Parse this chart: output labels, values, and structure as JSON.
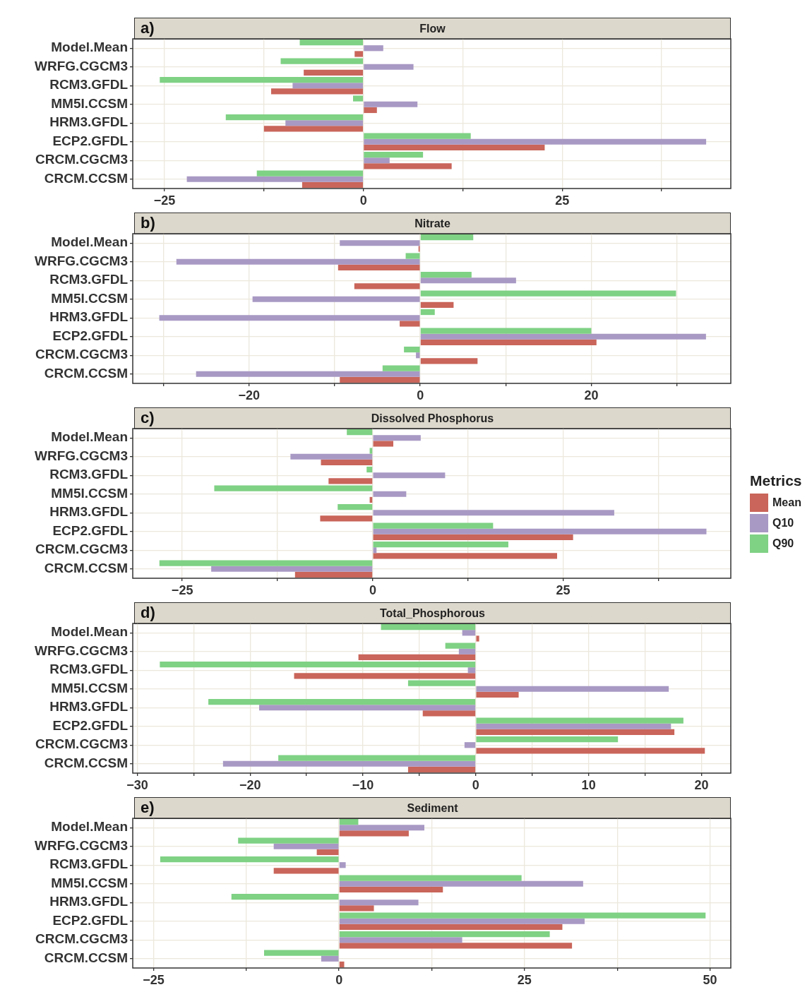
{
  "chart_data": [
    {
      "type": "bar",
      "orientation": "horizontal",
      "title": "Flow",
      "annotations": [
        "a)"
      ],
      "categories": [
        "Model.Mean",
        "WRFG.CGCM3",
        "RCM3.GFDL",
        "MM5I.CCSM",
        "HRM3.GFDL",
        "ECP2.GFDL",
        "CRCM.CGCM3",
        "CRCM.CCSM"
      ],
      "series": [
        {
          "color": "#c9655a",
          "values": [
            -1.1,
            -7.5,
            -11.6,
            1.7,
            -12.5,
            22.8,
            11.1,
            -7.7
          ]
        },
        {
          "color": "#a899c4",
          "values": [
            2.5,
            6.3,
            -8.9,
            6.8,
            -9.8,
            43.1,
            3.3,
            -22.2
          ]
        },
        {
          "color": "#7fd184",
          "values": [
            -8.0,
            -10.4,
            -25.6,
            -1.3,
            -17.3,
            13.5,
            7.5,
            -13.4
          ]
        }
      ],
      "xlim": [
        -29,
        46.2
      ],
      "xticks": [
        -25,
        {
          "value": -12.5,
          "label": null
        },
        0,
        {
          "value": 12.5,
          "label": null
        },
        25,
        {
          "value": 37.5,
          "label": null
        }
      ],
      "grid": true,
      "legend": false
    },
    {
      "type": "bar",
      "orientation": "horizontal",
      "title": "Nitrate",
      "annotations": [
        "b)"
      ],
      "categories": [
        "Model.Mean",
        "WRFG.CGCM3",
        "RCM3.GFDL",
        "MM5I.CCSM",
        "HRM3.GFDL",
        "ECP2.GFDL",
        "CRCM.CGCM3",
        "CRCM.CCSM"
      ],
      "series": [
        {
          "color": "#c9655a",
          "values": [
            -0.2,
            -9.6,
            -7.7,
            3.9,
            -2.4,
            20.6,
            6.7,
            -9.4
          ]
        },
        {
          "color": "#a899c4",
          "values": [
            -9.4,
            -28.5,
            11.2,
            -19.6,
            -30.5,
            33.4,
            -0.5,
            -26.2
          ]
        },
        {
          "color": "#7fd184",
          "values": [
            6.2,
            -1.7,
            6.0,
            29.9,
            1.7,
            20.0,
            -1.9,
            -4.4
          ]
        }
      ],
      "xlim": [
        -33.6,
        36.3
      ],
      "xticks": [
        {
          "value": -30,
          "label": null
        },
        -20,
        {
          "value": -10,
          "label": null
        },
        0,
        {
          "value": 10,
          "label": null
        },
        20,
        {
          "value": 30,
          "label": null
        }
      ],
      "grid": true,
      "legend": false
    },
    {
      "type": "bar",
      "orientation": "horizontal",
      "title": "Dissolved Phosphorus",
      "annotations": [
        "c)"
      ],
      "categories": [
        "Model.Mean",
        "WRFG.CGCM3",
        "RCM3.GFDL",
        "MM5I.CCSM",
        "HRM3.GFDL",
        "ECP2.GFDL",
        "CRCM.CGCM3",
        "CRCM.CCSM"
      ],
      "series": [
        {
          "name": "Mean",
          "color": "#c9655a",
          "values": [
            2.7,
            -6.8,
            -5.8,
            -0.4,
            -6.9,
            26.3,
            24.2,
            -10.2
          ]
        },
        {
          "name": "Q10",
          "color": "#a899c4",
          "values": [
            6.3,
            -10.8,
            9.5,
            4.4,
            31.7,
            43.8,
            0.5,
            -21.2
          ]
        },
        {
          "name": "Q90",
          "color": "#7fd184",
          "values": [
            -3.4,
            -0.4,
            -0.8,
            -20.8,
            -4.6,
            15.8,
            17.8,
            -28.0
          ]
        }
      ],
      "xlim": [
        -31.5,
        47
      ],
      "xticks": [
        -25,
        {
          "value": -12.5,
          "label": null
        },
        0,
        {
          "value": 12.5,
          "label": null
        },
        25,
        {
          "value": 37.5,
          "label": null
        }
      ],
      "grid": true,
      "legend": "right",
      "legend_title": "Metrics"
    },
    {
      "type": "bar",
      "orientation": "horizontal",
      "title": "Total_Phosphorous",
      "annotations": [
        "d)"
      ],
      "categories": [
        "Model.Mean",
        "WRFG.CGCM3",
        "RCM3.GFDL",
        "MM5I.CCSM",
        "HRM3.GFDL",
        "ECP2.GFDL",
        "CRCM.CGCM3",
        "CRCM.CCSM"
      ],
      "series": [
        {
          "color": "#c9655a",
          "values": [
            0.3,
            -10.4,
            -16.1,
            3.8,
            -4.7,
            17.6,
            20.3,
            -6.0
          ]
        },
        {
          "color": "#a899c4",
          "values": [
            -1.2,
            -1.5,
            -0.7,
            17.1,
            -19.2,
            17.3,
            -1.0,
            -22.4
          ]
        },
        {
          "color": "#7fd184",
          "values": [
            -8.4,
            -2.7,
            -28.0,
            -6.0,
            -23.7,
            18.4,
            12.6,
            -17.5
          ]
        }
      ],
      "xlim": [
        -30.4,
        22.6
      ],
      "xticks": [
        -30,
        {
          "value": -25,
          "label": null
        },
        -20,
        {
          "value": -15,
          "label": null
        },
        -10,
        {
          "value": -5,
          "label": null
        },
        0,
        {
          "value": 5,
          "label": null
        },
        10,
        {
          "value": 15,
          "label": null
        },
        20
      ],
      "grid": true,
      "legend": false
    },
    {
      "type": "bar",
      "orientation": "horizontal",
      "title": "Sediment",
      "annotations": [
        "e)"
      ],
      "categories": [
        "Model.Mean",
        "WRFG.CGCM3",
        "RCM3.GFDL",
        "MM5I.CCSM",
        "HRM3.GFDL",
        "ECP2.GFDL",
        "CRCM.CGCM3",
        "CRCM.CCSM"
      ],
      "series": [
        {
          "color": "#c9655a",
          "values": [
            9.4,
            -3.0,
            -8.8,
            14.0,
            4.7,
            30.1,
            31.4,
            0.7
          ]
        },
        {
          "color": "#a899c4",
          "values": [
            11.5,
            -8.8,
            0.9,
            32.9,
            10.7,
            33.1,
            16.6,
            -2.4
          ]
        },
        {
          "color": "#7fd184",
          "values": [
            2.6,
            -13.6,
            -24.1,
            24.6,
            -14.5,
            49.4,
            28.4,
            -10.1
          ]
        }
      ],
      "xlim": [
        -27.8,
        52.8
      ],
      "xticks": [
        -25,
        {
          "value": -12.5,
          "label": null
        },
        0,
        {
          "value": 12.5,
          "label": null
        },
        25,
        {
          "value": 37.5,
          "label": null
        },
        50
      ],
      "grid": true,
      "legend": false
    }
  ]
}
